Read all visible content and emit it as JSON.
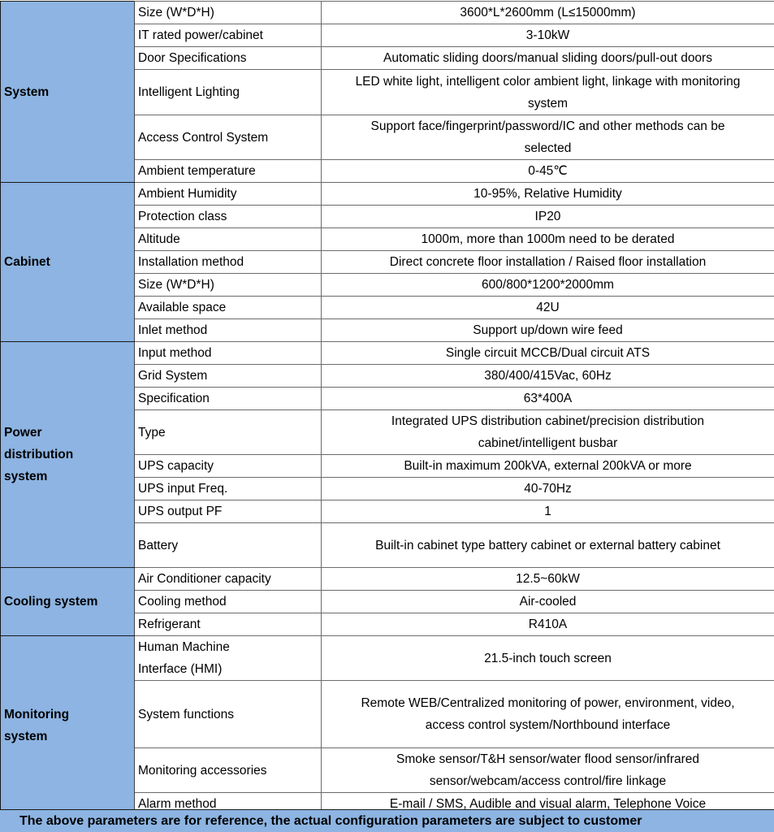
{
  "colors": {
    "group_bg": "#8db4e2",
    "footer_bg": "#8db4e2"
  },
  "groups": [
    {
      "name": "System",
      "rows": [
        {
          "label": "Size (W*D*H)",
          "value": "3600*L*2600mm (L≤15000mm)"
        },
        {
          "label": "IT rated power/cabinet",
          "value": "3-10kW"
        },
        {
          "label": "Door Specifications",
          "value": "Automatic sliding doors/manual sliding doors/pull-out doors"
        },
        {
          "label": "Intelligent Lighting",
          "value": "LED white light, intelligent color ambient light, linkage with monitoring system"
        },
        {
          "label": "Access Control System",
          "value": "Support face/fingerprint/password/IC and other methods can be selected"
        },
        {
          "label": "Ambient temperature",
          "value": "0-45℃"
        }
      ]
    },
    {
      "name": "Cabinet",
      "rows": [
        {
          "label": "Ambient Humidity",
          "value": "10-95%, Relative Humidity"
        },
        {
          "label": "Protection class",
          "value": "IP20"
        },
        {
          "label": "Altitude",
          "value": "1000m, more than 1000m need to be derated"
        },
        {
          "label": "Installation method",
          "value": "Direct concrete floor installation / Raised floor installation"
        },
        {
          "label": "Size (W*D*H)",
          "value": "600/800*1200*2000mm"
        },
        {
          "label": "Available space",
          "value": "42U"
        },
        {
          "label": "Inlet method",
          "value": "Support up/down wire feed"
        }
      ]
    },
    {
      "name": "Power distribution system",
      "rows": [
        {
          "label": "Input method",
          "value": "Single circuit MCCB/Dual circuit ATS"
        },
        {
          "label": "Grid System",
          "value": "380/400/415Vac, 60Hz"
        },
        {
          "label": "Specification",
          "value": "63*400A"
        },
        {
          "label": "Type",
          "value": "Integrated UPS distribution cabinet/precision distribution cabinet/intelligent busbar"
        },
        {
          "label": "UPS capacity",
          "value": "Built-in maximum 200kVA, external 200kVA or more"
        },
        {
          "label": "UPS input Freq.",
          "value": "40-70Hz"
        },
        {
          "label": "UPS output PF",
          "value": "1"
        },
        {
          "label": "Battery",
          "value": "Built-in cabinet type battery cabinet or external battery cabinet"
        }
      ]
    },
    {
      "name": "Cooling system",
      "rows": [
        {
          "label": "Air Conditioner capacity",
          "value": "12.5~60kW"
        },
        {
          "label": "Cooling method",
          "value": "Air-cooled"
        },
        {
          "label": "Refrigerant",
          "value": "R410A"
        }
      ]
    },
    {
      "name": "Monitoring system",
      "rows": [
        {
          "label": "Human Machine Interface (HMI)",
          "value": "21.5-inch touch screen"
        },
        {
          "label": "System functions",
          "value": "Remote WEB/Centralized monitoring of power, environment, video, access control system/Northbound interface"
        },
        {
          "label": "Monitoring accessories",
          "value": "Smoke sensor/T&H sensor/water flood sensor/infrared sensor/webcam/access control/fire linkage"
        },
        {
          "label": "Alarm method",
          "value": "E-mail / SMS, Audible and visual alarm, Telephone Voice"
        }
      ]
    }
  ],
  "footer": "The above parameters are for reference, the actual configuration parameters are subject to customer"
}
